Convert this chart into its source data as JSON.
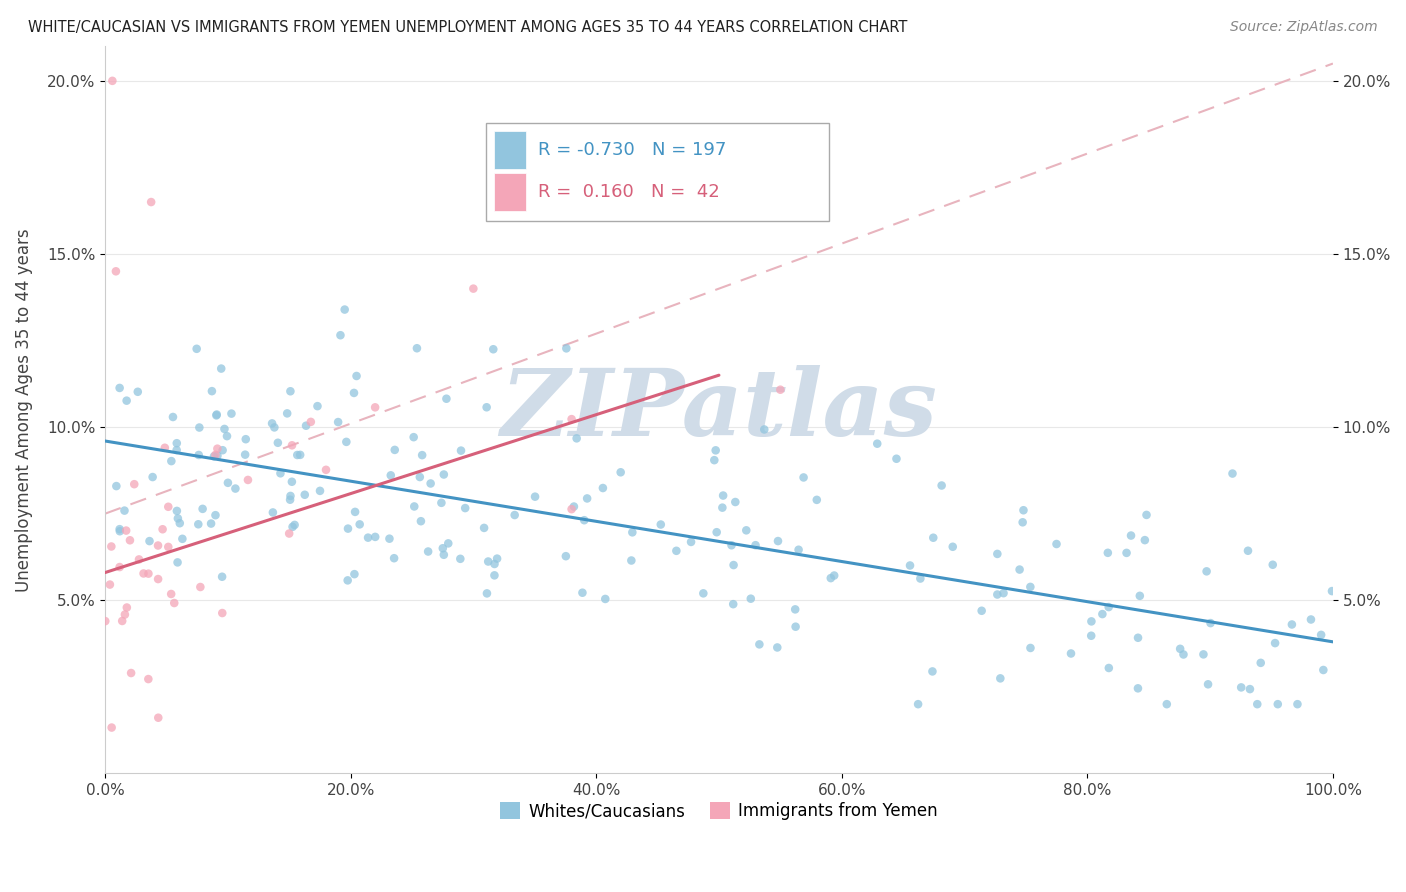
{
  "title": "WHITE/CAUCASIAN VS IMMIGRANTS FROM YEMEN UNEMPLOYMENT AMONG AGES 35 TO 44 YEARS CORRELATION CHART",
  "source": "Source: ZipAtlas.com",
  "xlabel": "",
  "ylabel": "Unemployment Among Ages 35 to 44 years",
  "xlim": [
    0,
    1.0
  ],
  "ylim": [
    0,
    0.21
  ],
  "xtick_labels": [
    "0.0%",
    "20.0%",
    "40.0%",
    "60.0%",
    "80.0%",
    "100.0%"
  ],
  "xtick_vals": [
    0.0,
    0.2,
    0.4,
    0.6,
    0.8,
    1.0
  ],
  "ytick_labels": [
    "5.0%",
    "10.0%",
    "15.0%",
    "20.0%"
  ],
  "ytick_vals": [
    0.05,
    0.1,
    0.15,
    0.2
  ],
  "blue_color": "#92c5de",
  "pink_color": "#f4a6b8",
  "blue_line_color": "#4393c3",
  "pink_line_color": "#d6607a",
  "dashed_line_color": "#e8b4be",
  "watermark_color": "#d0dce8",
  "legend_blue_R": "-0.730",
  "legend_blue_N": "197",
  "legend_pink_R": "0.160",
  "legend_pink_N": "42",
  "blue_line_x": [
    0.0,
    1.0
  ],
  "blue_line_y": [
    0.096,
    0.038
  ],
  "pink_line_x": [
    0.0,
    0.5
  ],
  "pink_line_y": [
    0.058,
    0.115
  ],
  "dashed_line_x": [
    0.0,
    1.0
  ],
  "dashed_line_y": [
    0.075,
    0.205
  ],
  "background_color": "#ffffff",
  "grid_color": "#e8e8e8",
  "legend_label_blue": "Whites/Caucasians",
  "legend_label_pink": "Immigrants from Yemen",
  "seed": 7
}
